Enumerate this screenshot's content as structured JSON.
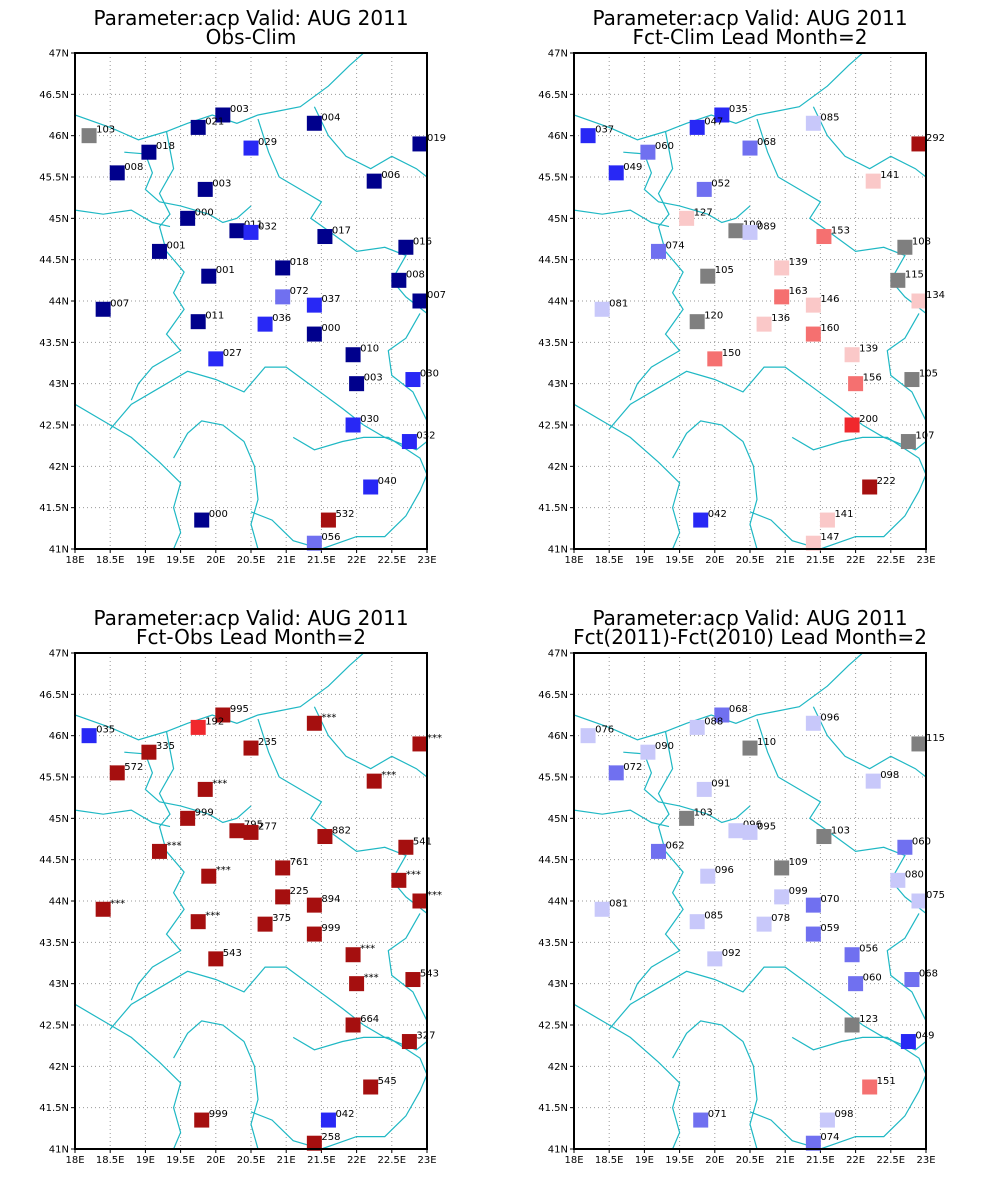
{
  "colors": {
    "grey": "#7f7f7f",
    "dark_red": "#a50f0f",
    "red": "#f0282d",
    "mid_red": "#f57070",
    "light_red": "#fac8c8",
    "dark_blue": "#00008c",
    "blue": "#2828f5",
    "mid_blue": "#7070f0",
    "light_blue": "#c8c8fa",
    "coast": "#1fb8c4"
  },
  "axes": {
    "lon_range": [
      18,
      23
    ],
    "lat_range": [
      41,
      47
    ],
    "lon_ticks": [
      "18E",
      "18.5E",
      "19E",
      "19.5E",
      "20E",
      "20.5E",
      "21E",
      "21.5E",
      "22E",
      "22.5E",
      "23E"
    ],
    "lat_ticks": [
      "41N",
      "41.5N",
      "42N",
      "42.5N",
      "43N",
      "43.5N",
      "44N",
      "44.5N",
      "45N",
      "45.5N",
      "46N",
      "46.5N",
      "47N"
    ]
  },
  "panels": [
    {
      "name": "obs-clim",
      "title1": "Parameter:acp Valid: AUG 2011",
      "title2": "Obs-Clim",
      "stations": [
        {
          "lon": 18.2,
          "lat": 46.0,
          "label": "103",
          "c": "grey"
        },
        {
          "lon": 20.1,
          "lat": 46.25,
          "label": "003",
          "c": "dark_blue"
        },
        {
          "lon": 19.75,
          "lat": 46.1,
          "label": "021",
          "c": "dark_blue"
        },
        {
          "lon": 21.4,
          "lat": 46.15,
          "label": "004",
          "c": "dark_blue"
        },
        {
          "lon": 22.9,
          "lat": 45.9,
          "label": "019",
          "c": "dark_blue"
        },
        {
          "lon": 19.05,
          "lat": 45.8,
          "label": "018",
          "c": "dark_blue"
        },
        {
          "lon": 20.5,
          "lat": 45.85,
          "label": "029",
          "c": "blue"
        },
        {
          "lon": 18.6,
          "lat": 45.55,
          "label": "008",
          "c": "dark_blue"
        },
        {
          "lon": 19.85,
          "lat": 45.35,
          "label": "003",
          "c": "dark_blue"
        },
        {
          "lon": 22.25,
          "lat": 45.45,
          "label": "006",
          "c": "dark_blue"
        },
        {
          "lon": 19.6,
          "lat": 45.0,
          "label": "000",
          "c": "dark_blue"
        },
        {
          "lon": 20.3,
          "lat": 44.85,
          "label": "011",
          "c": "dark_blue"
        },
        {
          "lon": 20.5,
          "lat": 44.83,
          "label": "032",
          "c": "blue"
        },
        {
          "lon": 21.55,
          "lat": 44.78,
          "label": "017",
          "c": "dark_blue"
        },
        {
          "lon": 22.7,
          "lat": 44.65,
          "label": "016",
          "c": "dark_blue"
        },
        {
          "lon": 19.2,
          "lat": 44.6,
          "label": "001",
          "c": "dark_blue"
        },
        {
          "lon": 19.9,
          "lat": 44.3,
          "label": "001",
          "c": "dark_blue"
        },
        {
          "lon": 20.95,
          "lat": 44.4,
          "label": "018",
          "c": "dark_blue"
        },
        {
          "lon": 22.6,
          "lat": 44.25,
          "label": "008",
          "c": "dark_blue"
        },
        {
          "lon": 20.95,
          "lat": 44.05,
          "label": "072",
          "c": "mid_blue"
        },
        {
          "lon": 21.4,
          "lat": 43.95,
          "label": "037",
          "c": "blue"
        },
        {
          "lon": 22.9,
          "lat": 44.0,
          "label": "007",
          "c": "dark_blue"
        },
        {
          "lon": 18.4,
          "lat": 43.9,
          "label": "007",
          "c": "dark_blue"
        },
        {
          "lon": 19.75,
          "lat": 43.75,
          "label": "011",
          "c": "dark_blue"
        },
        {
          "lon": 20.7,
          "lat": 43.72,
          "label": "036",
          "c": "blue"
        },
        {
          "lon": 21.4,
          "lat": 43.6,
          "label": "000",
          "c": "dark_blue"
        },
        {
          "lon": 21.95,
          "lat": 43.35,
          "label": "010",
          "c": "dark_blue"
        },
        {
          "lon": 20.0,
          "lat": 43.3,
          "label": "027",
          "c": "blue"
        },
        {
          "lon": 22.0,
          "lat": 43.0,
          "label": "003",
          "c": "dark_blue"
        },
        {
          "lon": 22.8,
          "lat": 43.05,
          "label": "030",
          "c": "blue"
        },
        {
          "lon": 21.95,
          "lat": 42.5,
          "label": "030",
          "c": "blue"
        },
        {
          "lon": 22.75,
          "lat": 42.3,
          "label": "032",
          "c": "blue"
        },
        {
          "lon": 22.2,
          "lat": 41.75,
          "label": "040",
          "c": "blue"
        },
        {
          "lon": 19.8,
          "lat": 41.35,
          "label": "000",
          "c": "dark_blue"
        },
        {
          "lon": 21.6,
          "lat": 41.35,
          "label": "532",
          "c": "dark_red"
        },
        {
          "lon": 21.4,
          "lat": 41.07,
          "label": "056",
          "c": "mid_blue"
        }
      ]
    },
    {
      "name": "fct-clim",
      "title1": "Parameter:acp Valid: AUG 2011",
      "title2": "Fct-Clim Lead Month=2",
      "stations": [
        {
          "lon": 18.2,
          "lat": 46.0,
          "label": "037",
          "c": "blue"
        },
        {
          "lon": 20.1,
          "lat": 46.25,
          "label": "035",
          "c": "blue"
        },
        {
          "lon": 19.75,
          "lat": 46.1,
          "label": "047",
          "c": "blue"
        },
        {
          "lon": 21.4,
          "lat": 46.15,
          "label": "085",
          "c": "light_blue"
        },
        {
          "lon": 22.9,
          "lat": 45.9,
          "label": "292",
          "c": "dark_red"
        },
        {
          "lon": 19.05,
          "lat": 45.8,
          "label": "060",
          "c": "mid_blue"
        },
        {
          "lon": 20.5,
          "lat": 45.85,
          "label": "068",
          "c": "mid_blue"
        },
        {
          "lon": 18.6,
          "lat": 45.55,
          "label": "049",
          "c": "blue"
        },
        {
          "lon": 19.85,
          "lat": 45.35,
          "label": "052",
          "c": "mid_blue"
        },
        {
          "lon": 22.25,
          "lat": 45.45,
          "label": "141",
          "c": "light_red"
        },
        {
          "lon": 19.6,
          "lat": 45.0,
          "label": "127",
          "c": "light_red"
        },
        {
          "lon": 20.3,
          "lat": 44.85,
          "label": "100",
          "c": "grey"
        },
        {
          "lon": 20.5,
          "lat": 44.83,
          "label": "089",
          "c": "light_blue"
        },
        {
          "lon": 21.55,
          "lat": 44.78,
          "label": "153",
          "c": "mid_red"
        },
        {
          "lon": 22.7,
          "lat": 44.65,
          "label": "108",
          "c": "grey"
        },
        {
          "lon": 19.2,
          "lat": 44.6,
          "label": "074",
          "c": "mid_blue"
        },
        {
          "lon": 19.9,
          "lat": 44.3,
          "label": "105",
          "c": "grey"
        },
        {
          "lon": 20.95,
          "lat": 44.4,
          "label": "139",
          "c": "light_red"
        },
        {
          "lon": 22.6,
          "lat": 44.25,
          "label": "115",
          "c": "grey"
        },
        {
          "lon": 20.95,
          "lat": 44.05,
          "label": "163",
          "c": "mid_red"
        },
        {
          "lon": 21.4,
          "lat": 43.95,
          "label": "146",
          "c": "light_red"
        },
        {
          "lon": 22.9,
          "lat": 44.0,
          "label": "134",
          "c": "light_red"
        },
        {
          "lon": 18.4,
          "lat": 43.9,
          "label": "081",
          "c": "light_blue"
        },
        {
          "lon": 19.75,
          "lat": 43.75,
          "label": "120",
          "c": "grey"
        },
        {
          "lon": 20.7,
          "lat": 43.72,
          "label": "136",
          "c": "light_red"
        },
        {
          "lon": 21.4,
          "lat": 43.6,
          "label": "160",
          "c": "mid_red"
        },
        {
          "lon": 21.95,
          "lat": 43.35,
          "label": "139",
          "c": "light_red"
        },
        {
          "lon": 20.0,
          "lat": 43.3,
          "label": "150",
          "c": "mid_red"
        },
        {
          "lon": 22.0,
          "lat": 43.0,
          "label": "156",
          "c": "mid_red"
        },
        {
          "lon": 22.8,
          "lat": 43.05,
          "label": "105",
          "c": "grey"
        },
        {
          "lon": 21.95,
          "lat": 42.5,
          "label": "200",
          "c": "red"
        },
        {
          "lon": 22.75,
          "lat": 42.3,
          "label": "107",
          "c": "grey"
        },
        {
          "lon": 22.2,
          "lat": 41.75,
          "label": "222",
          "c": "dark_red"
        },
        {
          "lon": 19.8,
          "lat": 41.35,
          "label": "042",
          "c": "blue"
        },
        {
          "lon": 21.6,
          "lat": 41.35,
          "label": "141",
          "c": "light_red"
        },
        {
          "lon": 21.4,
          "lat": 41.07,
          "label": "147",
          "c": "light_red"
        }
      ]
    },
    {
      "name": "fct-obs",
      "title1": "Parameter:acp Valid: AUG 2011",
      "title2": "Fct-Obs Lead Month=2",
      "stations": [
        {
          "lon": 18.2,
          "lat": 46.0,
          "label": "035",
          "c": "blue"
        },
        {
          "lon": 20.1,
          "lat": 46.25,
          "label": "995",
          "c": "dark_red"
        },
        {
          "lon": 19.75,
          "lat": 46.1,
          "label": "192",
          "c": "red"
        },
        {
          "lon": 21.4,
          "lat": 46.15,
          "label": "***",
          "c": "dark_red"
        },
        {
          "lon": 22.9,
          "lat": 45.9,
          "label": "***",
          "c": "dark_red"
        },
        {
          "lon": 19.05,
          "lat": 45.8,
          "label": "335",
          "c": "dark_red"
        },
        {
          "lon": 20.5,
          "lat": 45.85,
          "label": "235",
          "c": "dark_red"
        },
        {
          "lon": 18.6,
          "lat": 45.55,
          "label": "572",
          "c": "dark_red"
        },
        {
          "lon": 19.85,
          "lat": 45.35,
          "label": "***",
          "c": "dark_red"
        },
        {
          "lon": 22.25,
          "lat": 45.45,
          "label": "***",
          "c": "dark_red"
        },
        {
          "lon": 19.6,
          "lat": 45.0,
          "label": "999",
          "c": "dark_red"
        },
        {
          "lon": 20.3,
          "lat": 44.85,
          "label": "795",
          "c": "dark_red"
        },
        {
          "lon": 20.5,
          "lat": 44.83,
          "label": "277",
          "c": "dark_red"
        },
        {
          "lon": 21.55,
          "lat": 44.78,
          "label": "882",
          "c": "dark_red"
        },
        {
          "lon": 22.7,
          "lat": 44.65,
          "label": "541",
          "c": "dark_red"
        },
        {
          "lon": 19.2,
          "lat": 44.6,
          "label": "***",
          "c": "dark_red"
        },
        {
          "lon": 19.9,
          "lat": 44.3,
          "label": "***",
          "c": "dark_red"
        },
        {
          "lon": 20.95,
          "lat": 44.4,
          "label": "761",
          "c": "dark_red"
        },
        {
          "lon": 22.6,
          "lat": 44.25,
          "label": "***",
          "c": "dark_red"
        },
        {
          "lon": 20.95,
          "lat": 44.05,
          "label": "225",
          "c": "dark_red"
        },
        {
          "lon": 21.4,
          "lat": 43.95,
          "label": "894",
          "c": "dark_red"
        },
        {
          "lon": 22.9,
          "lat": 44.0,
          "label": "***",
          "c": "dark_red"
        },
        {
          "lon": 18.4,
          "lat": 43.9,
          "label": "***",
          "c": "dark_red"
        },
        {
          "lon": 19.75,
          "lat": 43.75,
          "label": "***",
          "c": "dark_red"
        },
        {
          "lon": 20.7,
          "lat": 43.72,
          "label": "375",
          "c": "dark_red"
        },
        {
          "lon": 21.4,
          "lat": 43.6,
          "label": "999",
          "c": "dark_red"
        },
        {
          "lon": 21.95,
          "lat": 43.35,
          "label": "***",
          "c": "dark_red"
        },
        {
          "lon": 20.0,
          "lat": 43.3,
          "label": "543",
          "c": "dark_red"
        },
        {
          "lon": 22.0,
          "lat": 43.0,
          "label": "***",
          "c": "dark_red"
        },
        {
          "lon": 22.8,
          "lat": 43.05,
          "label": "543",
          "c": "dark_red"
        },
        {
          "lon": 21.95,
          "lat": 42.5,
          "label": "664",
          "c": "dark_red"
        },
        {
          "lon": 22.75,
          "lat": 42.3,
          "label": "327",
          "c": "dark_red"
        },
        {
          "lon": 22.2,
          "lat": 41.75,
          "label": "545",
          "c": "dark_red"
        },
        {
          "lon": 19.8,
          "lat": 41.35,
          "label": "999",
          "c": "dark_red"
        },
        {
          "lon": 21.6,
          "lat": 41.35,
          "label": "042",
          "c": "blue"
        },
        {
          "lon": 21.4,
          "lat": 41.07,
          "label": "258",
          "c": "dark_red"
        }
      ]
    },
    {
      "name": "fct-2011-minus-2010",
      "title1": "Parameter:acp Valid: AUG 2011",
      "title2": "Fct(2011)-Fct(2010) Lead Month=2",
      "stations": [
        {
          "lon": 18.2,
          "lat": 46.0,
          "label": "076",
          "c": "light_blue"
        },
        {
          "lon": 20.1,
          "lat": 46.25,
          "label": "068",
          "c": "mid_blue"
        },
        {
          "lon": 19.75,
          "lat": 46.1,
          "label": "088",
          "c": "light_blue"
        },
        {
          "lon": 21.4,
          "lat": 46.15,
          "label": "096",
          "c": "light_blue"
        },
        {
          "lon": 22.9,
          "lat": 45.9,
          "label": "115",
          "c": "grey"
        },
        {
          "lon": 19.05,
          "lat": 45.8,
          "label": "090",
          "c": "light_blue"
        },
        {
          "lon": 20.5,
          "lat": 45.85,
          "label": "110",
          "c": "grey"
        },
        {
          "lon": 18.6,
          "lat": 45.55,
          "label": "072",
          "c": "mid_blue"
        },
        {
          "lon": 19.85,
          "lat": 45.35,
          "label": "091",
          "c": "light_blue"
        },
        {
          "lon": 22.25,
          "lat": 45.45,
          "label": "098",
          "c": "light_blue"
        },
        {
          "lon": 19.6,
          "lat": 45.0,
          "label": "103",
          "c": "grey"
        },
        {
          "lon": 20.3,
          "lat": 44.85,
          "label": "096",
          "c": "light_blue"
        },
        {
          "lon": 20.5,
          "lat": 44.83,
          "label": "095",
          "c": "light_blue"
        },
        {
          "lon": 21.55,
          "lat": 44.78,
          "label": "103",
          "c": "grey"
        },
        {
          "lon": 22.7,
          "lat": 44.65,
          "label": "060",
          "c": "mid_blue"
        },
        {
          "lon": 19.2,
          "lat": 44.6,
          "label": "062",
          "c": "mid_blue"
        },
        {
          "lon": 19.9,
          "lat": 44.3,
          "label": "096",
          "c": "light_blue"
        },
        {
          "lon": 20.95,
          "lat": 44.4,
          "label": "109",
          "c": "grey"
        },
        {
          "lon": 22.6,
          "lat": 44.25,
          "label": "080",
          "c": "light_blue"
        },
        {
          "lon": 20.95,
          "lat": 44.05,
          "label": "099",
          "c": "light_blue"
        },
        {
          "lon": 21.4,
          "lat": 43.95,
          "label": "070",
          "c": "mid_blue"
        },
        {
          "lon": 22.9,
          "lat": 44.0,
          "label": "075",
          "c": "light_blue"
        },
        {
          "lon": 18.4,
          "lat": 43.9,
          "label": "081",
          "c": "light_blue"
        },
        {
          "lon": 19.75,
          "lat": 43.75,
          "label": "085",
          "c": "light_blue"
        },
        {
          "lon": 20.7,
          "lat": 43.72,
          "label": "078",
          "c": "light_blue"
        },
        {
          "lon": 21.4,
          "lat": 43.6,
          "label": "059",
          "c": "mid_blue"
        },
        {
          "lon": 21.95,
          "lat": 43.35,
          "label": "056",
          "c": "mid_blue"
        },
        {
          "lon": 20.0,
          "lat": 43.3,
          "label": "092",
          "c": "light_blue"
        },
        {
          "lon": 22.0,
          "lat": 43.0,
          "label": "060",
          "c": "mid_blue"
        },
        {
          "lon": 22.8,
          "lat": 43.05,
          "label": "068",
          "c": "mid_blue"
        },
        {
          "lon": 21.95,
          "lat": 42.5,
          "label": "123",
          "c": "grey"
        },
        {
          "lon": 22.75,
          "lat": 42.3,
          "label": "049",
          "c": "blue"
        },
        {
          "lon": 22.2,
          "lat": 41.75,
          "label": "151",
          "c": "mid_red"
        },
        {
          "lon": 19.8,
          "lat": 41.35,
          "label": "071",
          "c": "mid_blue"
        },
        {
          "lon": 21.6,
          "lat": 41.35,
          "label": "098",
          "c": "light_blue"
        },
        {
          "lon": 21.4,
          "lat": 41.07,
          "label": "074",
          "c": "mid_blue"
        }
      ]
    }
  ]
}
